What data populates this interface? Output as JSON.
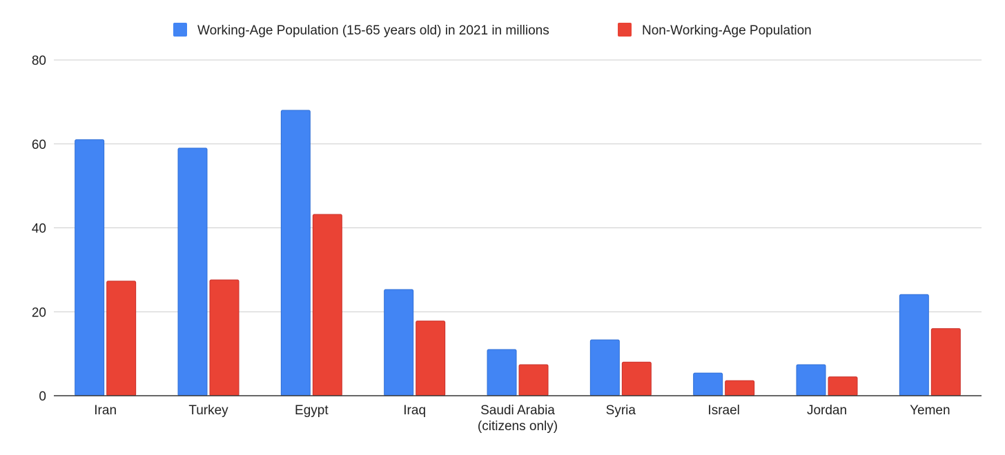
{
  "chart_data": {
    "type": "bar",
    "title": "",
    "xlabel": "",
    "ylabel": "",
    "ylim": [
      0,
      80
    ],
    "yticks": [
      0,
      20,
      40,
      60,
      80
    ],
    "grid": true,
    "legend_position": "top",
    "categories": [
      [
        "Iran"
      ],
      [
        "Turkey"
      ],
      [
        "Egypt"
      ],
      [
        "Iraq"
      ],
      [
        "Saudi Arabia",
        "(citizens only)"
      ],
      [
        "Syria"
      ],
      [
        "Israel"
      ],
      [
        "Jordan"
      ],
      [
        "Yemen"
      ]
    ],
    "series": [
      {
        "name": "Working-Age Population (15-65 years old) in 2021 in millions",
        "color": "#4285f4",
        "values": [
          61,
          59,
          68,
          25.3,
          11,
          13.3,
          5.4,
          7.4,
          24.1
        ]
      },
      {
        "name": "Non-Working-Age Population",
        "color": "#ea4335",
        "values": [
          27.3,
          27.6,
          43.2,
          17.8,
          7.4,
          8,
          3.6,
          4.5,
          16
        ]
      }
    ]
  }
}
